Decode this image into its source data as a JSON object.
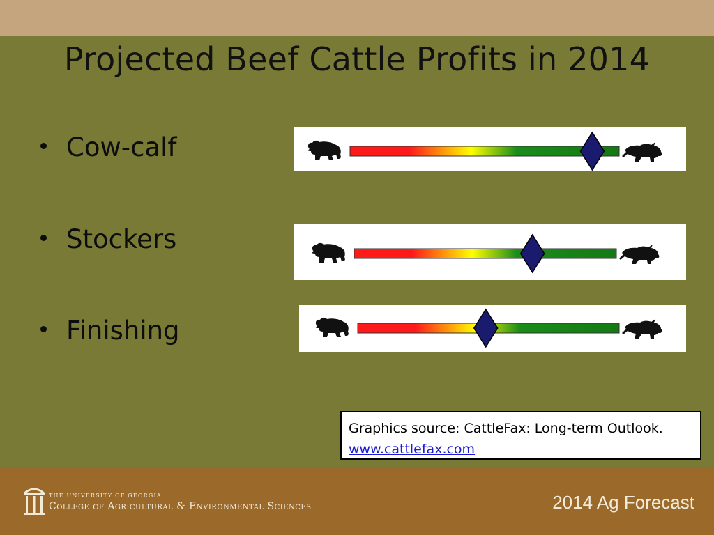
{
  "slide": {
    "title": "Projected Beef Cattle Profits in 2014"
  },
  "indicators": [
    {
      "label": "Cow-calf",
      "level": 0.9
    },
    {
      "label": "Stockers",
      "level": 0.68
    },
    {
      "label": "Finishing",
      "level": 0.49
    }
  ],
  "gauge": {
    "left_icon": "bear-icon",
    "right_icon": "bull-icon",
    "gradient": [
      "#ff1a1a",
      "#ffff00",
      "#1a8c1a",
      "#137a13"
    ],
    "marker_color": "#1a1a6e"
  },
  "source": {
    "text": "Graphics source: CattleFax: Long-term Outlook.",
    "link": "www.cattlefax.com"
  },
  "footer": {
    "university": "THE UNIVERSITY OF GEORGIA",
    "college": "College of Agricultural & Environmental Sciences",
    "forecast": "2014 Ag Forecast"
  },
  "colors": {
    "top_band": "#c5a57e",
    "background": "#787a35",
    "footer": "#9b6a2b"
  }
}
